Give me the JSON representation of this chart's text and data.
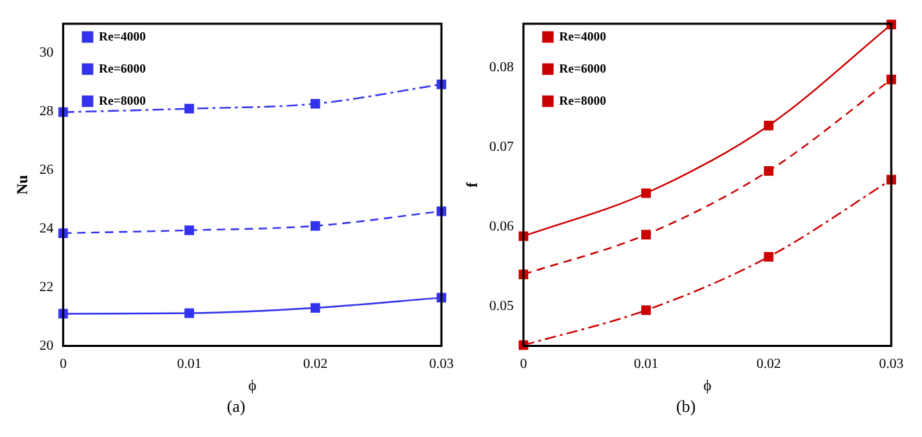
{
  "chart_data": [
    {
      "type": "line",
      "xlabel": "ϕ",
      "ylabel": "Nu",
      "x": [
        0,
        0.01,
        0.02,
        0.03
      ],
      "xlim": [
        0,
        0.03
      ],
      "xticks": [
        0,
        0.01,
        0.02,
        0.03
      ],
      "ylim": [
        20,
        31
      ],
      "yticks": [
        20,
        22,
        24,
        26,
        28,
        30
      ],
      "grid": false,
      "legend": "top left",
      "marker": "square",
      "annotations": [
        "(a)"
      ],
      "series": [
        {
          "name": "Re=4000",
          "color": "#3333ee",
          "line_style": "solid",
          "values": [
            21.1,
            21.12,
            21.3,
            21.65
          ]
        },
        {
          "name": "Re=6000",
          "color": "#3333ee",
          "line_style": "dashed",
          "values": [
            23.85,
            23.95,
            24.1,
            24.6
          ]
        },
        {
          "name": "Re=8000",
          "color": "#3333ee",
          "line_style": "dashdot",
          "values": [
            27.98,
            28.1,
            28.27,
            28.93
          ]
        }
      ]
    },
    {
      "type": "line",
      "xlabel": "ϕ",
      "ylabel": "f",
      "x": [
        0,
        0.01,
        0.02,
        0.03
      ],
      "xlim": [
        0,
        0.03
      ],
      "xticks": [
        0,
        0.01,
        0.02,
        0.03
      ],
      "ylim": [
        0.045,
        0.0855
      ],
      "yticks": [
        0.05,
        0.06,
        0.07,
        0.08
      ],
      "grid": false,
      "legend": "top left",
      "marker": "square",
      "annotations": [
        "(b)"
      ],
      "series": [
        {
          "name": "Re=4000",
          "color": "#cc0000",
          "line_style": "solid",
          "values": [
            0.0588,
            0.0642,
            0.0727,
            0.0854
          ]
        },
        {
          "name": "Re=6000",
          "color": "#cc0000",
          "line_style": "dashed",
          "values": [
            0.054,
            0.059,
            0.067,
            0.0785
          ]
        },
        {
          "name": "Re=8000",
          "color": "#cc0000",
          "line_style": "dashdot",
          "values": [
            0.0451,
            0.0495,
            0.0562,
            0.0659
          ]
        }
      ]
    }
  ]
}
